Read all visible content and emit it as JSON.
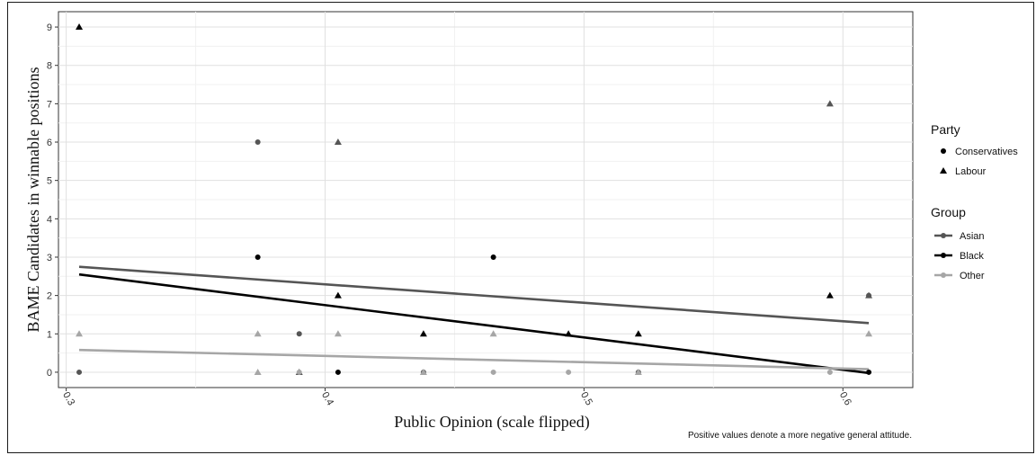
{
  "chart_data": {
    "type": "scatter",
    "xlabel": "Public Opinion (scale flipped)",
    "ylabel": "BAME Candidates in winnable positions",
    "xlim": [
      0.297,
      0.627
    ],
    "ylim": [
      -0.4,
      9.4
    ],
    "x_ticks": [
      0.3,
      0.4,
      0.5,
      0.6
    ],
    "x_tick_labels": [
      "0.3",
      "0.4",
      "0.5",
      "0.6"
    ],
    "y_ticks": [
      0,
      1,
      2,
      3,
      4,
      5,
      6,
      7,
      8,
      9
    ],
    "y_tick_labels": [
      "0",
      "1",
      "2",
      "3",
      "4",
      "5",
      "6",
      "7",
      "8",
      "9"
    ],
    "grid": true,
    "legend_position": "right",
    "legend": {
      "party_title": "Party",
      "party_items": [
        {
          "label": "Conservatives",
          "shape": "circle"
        },
        {
          "label": "Labour",
          "shape": "triangle"
        }
      ],
      "group_title": "Group",
      "group_items": [
        {
          "label": "Asian",
          "color": "#555555"
        },
        {
          "label": "Black",
          "color": "#000000"
        },
        {
          "label": "Other",
          "color": "#a6a6a6"
        }
      ]
    },
    "colors": {
      "Asian": "#555555",
      "Black": "#000000",
      "Other": "#a6a6a6"
    },
    "series": [
      {
        "name": "Asian",
        "points": [
          {
            "x": 0.305,
            "y": 0,
            "party": "Conservatives"
          },
          {
            "x": 0.374,
            "y": 6,
            "party": "Conservatives"
          },
          {
            "x": 0.39,
            "y": 1,
            "party": "Conservatives"
          },
          {
            "x": 0.39,
            "y": 0,
            "party": "Labour"
          },
          {
            "x": 0.405,
            "y": 6,
            "party": "Labour"
          },
          {
            "x": 0.438,
            "y": 0,
            "party": "Conservatives"
          },
          {
            "x": 0.521,
            "y": 0,
            "party": "Conservatives"
          },
          {
            "x": 0.595,
            "y": 7,
            "party": "Labour"
          },
          {
            "x": 0.61,
            "y": 2,
            "party": "Conservatives"
          },
          {
            "x": 0.61,
            "y": 2,
            "party": "Labour"
          }
        ]
      },
      {
        "name": "Black",
        "points": [
          {
            "x": 0.305,
            "y": 9,
            "party": "Labour"
          },
          {
            "x": 0.374,
            "y": 3,
            "party": "Conservatives"
          },
          {
            "x": 0.405,
            "y": 2,
            "party": "Labour"
          },
          {
            "x": 0.405,
            "y": 0,
            "party": "Conservatives"
          },
          {
            "x": 0.438,
            "y": 1,
            "party": "Labour"
          },
          {
            "x": 0.465,
            "y": 3,
            "party": "Conservatives"
          },
          {
            "x": 0.494,
            "y": 1,
            "party": "Labour"
          },
          {
            "x": 0.521,
            "y": 1,
            "party": "Labour"
          },
          {
            "x": 0.595,
            "y": 2,
            "party": "Labour"
          },
          {
            "x": 0.61,
            "y": 0,
            "party": "Conservatives"
          }
        ]
      },
      {
        "name": "Other",
        "points": [
          {
            "x": 0.305,
            "y": 1,
            "party": "Labour"
          },
          {
            "x": 0.374,
            "y": 1,
            "party": "Labour"
          },
          {
            "x": 0.374,
            "y": 0,
            "party": "Labour"
          },
          {
            "x": 0.39,
            "y": 0,
            "party": "Conservatives"
          },
          {
            "x": 0.405,
            "y": 1,
            "party": "Labour"
          },
          {
            "x": 0.438,
            "y": 0,
            "party": "Labour"
          },
          {
            "x": 0.465,
            "y": 1,
            "party": "Labour"
          },
          {
            "x": 0.465,
            "y": 0,
            "party": "Conservatives"
          },
          {
            "x": 0.494,
            "y": 0,
            "party": "Conservatives"
          },
          {
            "x": 0.521,
            "y": 0,
            "party": "Labour"
          },
          {
            "x": 0.595,
            "y": 0,
            "party": "Conservatives"
          },
          {
            "x": 0.61,
            "y": 1,
            "party": "Labour"
          }
        ]
      }
    ],
    "trend_lines": [
      {
        "name": "Asian",
        "x": [
          0.305,
          0.61
        ],
        "y": [
          2.75,
          1.28
        ]
      },
      {
        "name": "Black",
        "x": [
          0.305,
          0.61
        ],
        "y": [
          2.55,
          -0.02
        ]
      },
      {
        "name": "Other",
        "x": [
          0.305,
          0.61
        ],
        "y": [
          0.58,
          0.08
        ]
      }
    ],
    "annotation": "Positive values denote a more negative general attitude."
  }
}
